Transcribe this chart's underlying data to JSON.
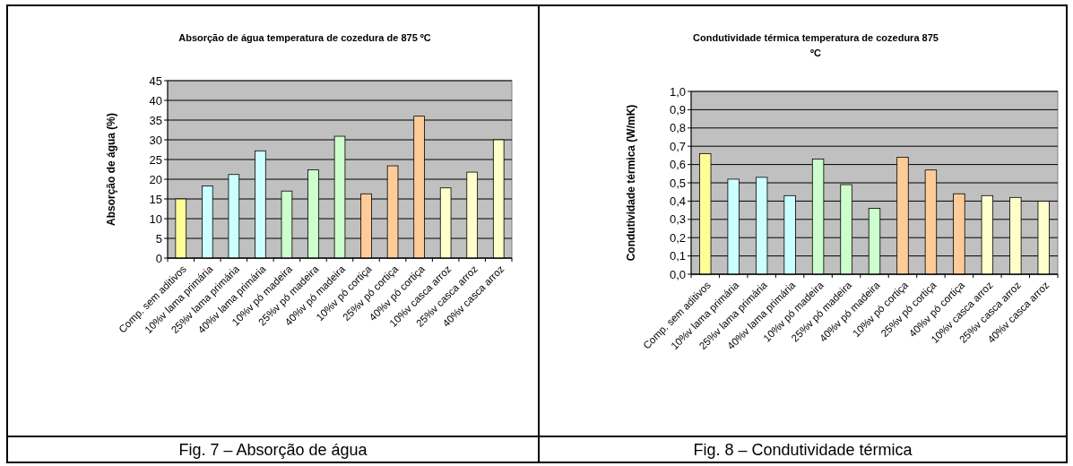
{
  "chart_data": [
    {
      "type": "bar",
      "title": "Absorção de água temperatura de cozedura de 875 ºC",
      "ylabel": "Absorção de água (%)",
      "categories": [
        "Comp. sem aditivos",
        "10%v lama primária",
        "25%v lama primária",
        "40%v lama primária",
        "10%v pó madeira",
        "25%v pó madeira",
        "40%v pó madeira",
        "10%v pó cortiça",
        "25%v pó cortiça",
        "40%v pó cortiça",
        "10%v casca arroz",
        "25%v casca arroz",
        "40%v casca arroz"
      ],
      "values": [
        15,
        18.3,
        21.2,
        27.2,
        17,
        22.4,
        30.9,
        16.3,
        23.4,
        36,
        17.8,
        21.8,
        30
      ],
      "colors": [
        "#ffff99",
        "#ccffff",
        "#ccffff",
        "#ccffff",
        "#ccffcc",
        "#ccffcc",
        "#ccffcc",
        "#ffcc99",
        "#ffcc99",
        "#ffcc99",
        "#ffffcc",
        "#ffffcc",
        "#ffffcc"
      ],
      "ylim": [
        0,
        45
      ],
      "yticks": [
        0,
        5,
        10,
        15,
        20,
        25,
        30,
        35,
        40,
        45
      ],
      "grid": "y",
      "annotations": [
        "Fig. 7 – Absorção de água"
      ]
    },
    {
      "type": "bar",
      "title": "Condutividade térmica temperatura de cozedura 875 ºC",
      "ylabel": "Condutividade térmica (W/mK)",
      "categories": [
        "Comp. sem aditivos",
        "10%v lama primária",
        "25%v lama primária",
        "40%v lama primária",
        "10%v pó madeira",
        "25%v pó madeira",
        "40%v pó madeira",
        "10%v pó cortiça",
        "25%v pó cortiça",
        "40%v pó cortiça",
        "10%v casca arroz",
        "25%v casca arroz",
        "40%v casca arroz"
      ],
      "values": [
        0.66,
        0.52,
        0.53,
        0.43,
        0.63,
        0.49,
        0.36,
        0.64,
        0.57,
        0.44,
        0.43,
        0.42,
        0.4
      ],
      "colors": [
        "#ffff99",
        "#ccffff",
        "#ccffff",
        "#ccffff",
        "#ccffcc",
        "#ccffcc",
        "#ccffcc",
        "#ffcc99",
        "#ffcc99",
        "#ffcc99",
        "#ffffcc",
        "#ffffcc",
        "#ffffcc"
      ],
      "ylim": [
        0,
        1
      ],
      "yticks": [
        {
          "value": 0,
          "label": "0,0"
        },
        {
          "value": 0.1,
          "label": "0,1"
        },
        {
          "value": 0.2,
          "label": "0,2"
        },
        {
          "value": 0.3,
          "label": "0,3"
        },
        {
          "value": 0.4,
          "label": "0,4"
        },
        {
          "value": 0.5,
          "label": "0,5"
        },
        {
          "value": 0.6,
          "label": "0,6"
        },
        {
          "value": 0.7,
          "label": "0,7"
        },
        {
          "value": 0.8,
          "label": "0,8"
        },
        {
          "value": 0.9,
          "label": "0,9"
        },
        {
          "value": 1,
          "label": "1,0"
        }
      ],
      "grid": "y",
      "annotations": [
        "Fig. 8 – Condutividade térmica"
      ]
    }
  ]
}
